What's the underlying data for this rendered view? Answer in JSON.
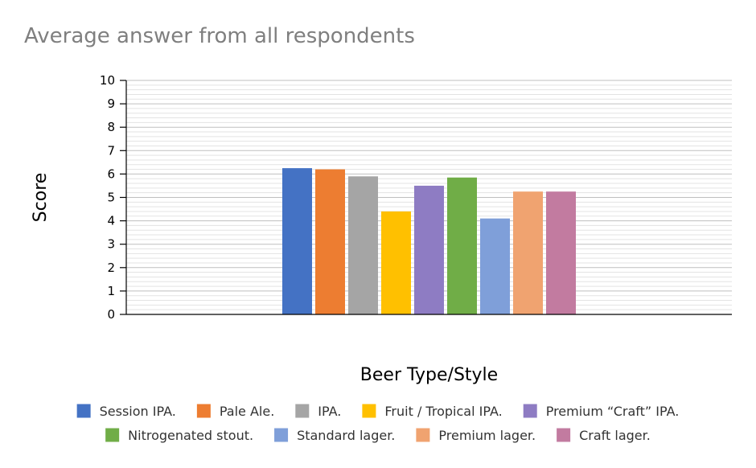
{
  "chart_data": {
    "type": "bar",
    "title": "Average answer from all respondents",
    "xlabel": "Beer Type/Style",
    "ylabel": "Score",
    "ylim": [
      0,
      10
    ],
    "yticks": [
      0,
      1,
      2,
      3,
      4,
      5,
      6,
      7,
      8,
      9,
      10
    ],
    "grid": true,
    "legend": "bottom",
    "categories": [
      ""
    ],
    "series": [
      {
        "name": "Session IPA.",
        "color": "#4472c4",
        "values": [
          6.25
        ]
      },
      {
        "name": "Pale Ale.",
        "color": "#ed7d31",
        "values": [
          6.2
        ]
      },
      {
        "name": "IPA.",
        "color": "#a5a5a5",
        "values": [
          5.9
        ]
      },
      {
        "name": "Fruit / Tropical IPA.",
        "color": "#ffc000",
        "values": [
          4.4
        ]
      },
      {
        "name": "Premium “Craft” IPA.",
        "color": "#8e7cc3",
        "values": [
          5.5
        ]
      },
      {
        "name": "Nitrogenated stout.",
        "color": "#70ad47",
        "values": [
          5.85
        ]
      },
      {
        "name": "Standard lager.",
        "color": "#7f9fd9",
        "values": [
          4.1
        ]
      },
      {
        "name": "Premium lager.",
        "color": "#f0a370",
        "values": [
          5.25
        ]
      },
      {
        "name": "Craft lager.",
        "color": "#c27ba0",
        "values": [
          5.25
        ]
      }
    ]
  }
}
